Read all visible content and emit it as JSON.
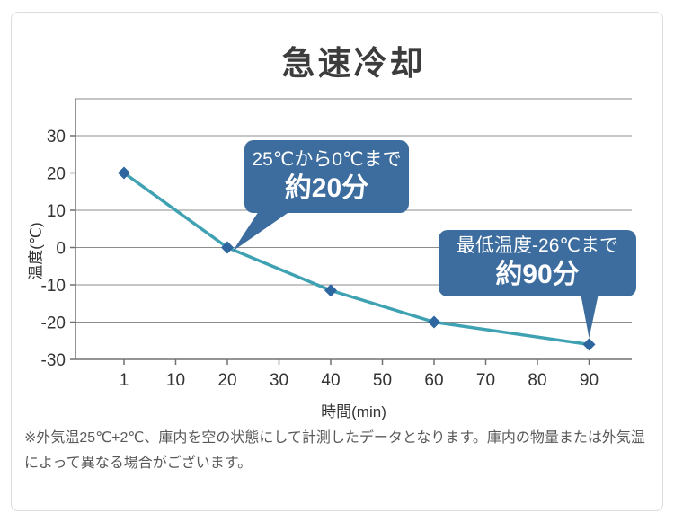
{
  "title": "急速冷却",
  "footnote": "※外気温25℃+2℃、庫内を空の状態にして計測したデータとなります。庫内の物量または外気温によって異なる場合がございます。",
  "chart_data": {
    "type": "line",
    "title": "急速冷却",
    "xlabel": "時間(min)",
    "ylabel": "温度(℃)",
    "x_categories": [
      "1",
      "10",
      "20",
      "30",
      "40",
      "50",
      "60",
      "70",
      "80",
      "90"
    ],
    "y_ticks": [
      30,
      20,
      10,
      0,
      -10,
      -20,
      -30
    ],
    "ylim": [
      -30,
      40
    ],
    "grid": true,
    "series": [
      {
        "points": [
          {
            "x": "1",
            "y": 20
          },
          {
            "x": "20",
            "y": 0
          },
          {
            "x": "40",
            "y": -11.5
          },
          {
            "x": "60",
            "y": -20
          },
          {
            "x": "90",
            "y": -26
          }
        ]
      }
    ],
    "annotations": [
      {
        "line1": "25℃から0℃まで",
        "line2": "約20分",
        "anchor_x": "20"
      },
      {
        "line1": "最低温度-26℃まで",
        "line2": "約90分",
        "anchor_x": "90"
      }
    ],
    "colors": {
      "line": "#3FA2B2",
      "marker": "#2E66A0",
      "callout_bg": "#3C6D9E",
      "grid": "#8c8c8c",
      "axis": "#707070",
      "text": "#333333"
    }
  }
}
